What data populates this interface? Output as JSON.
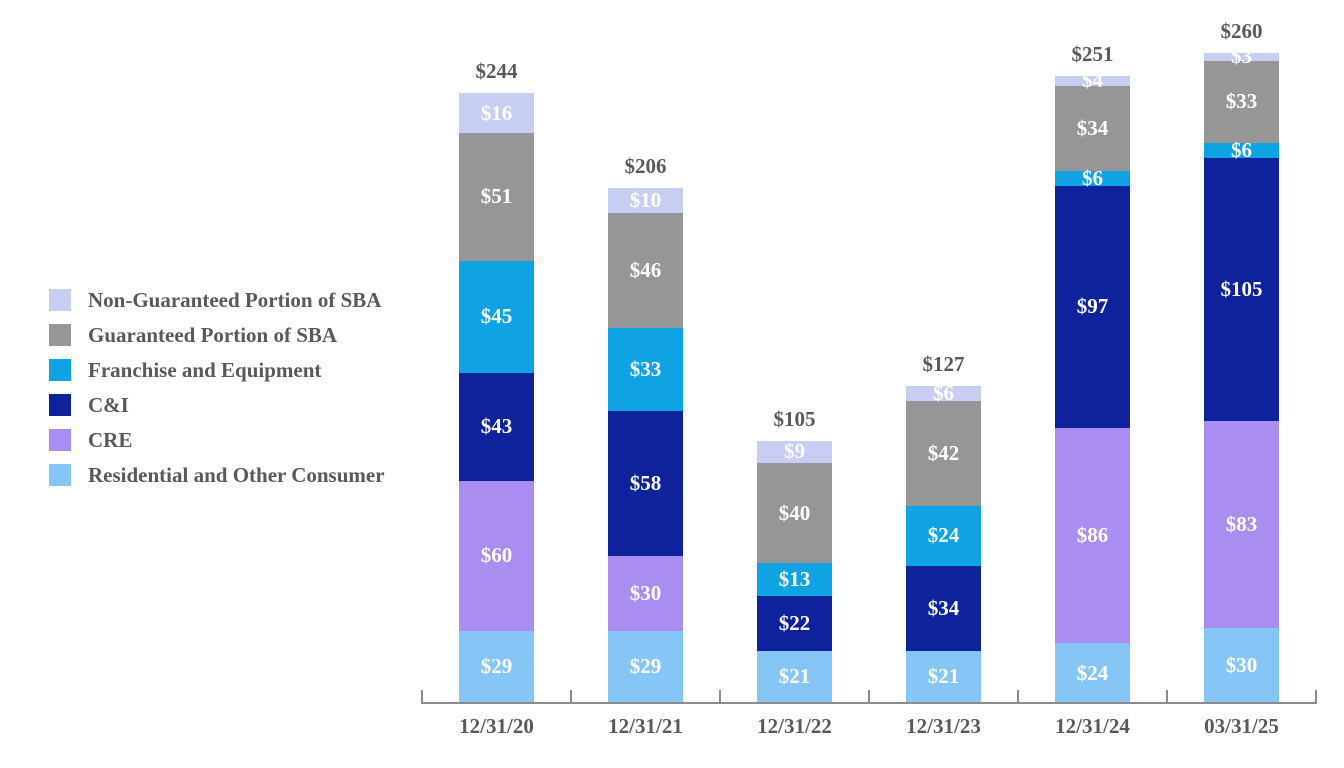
{
  "chart_data": {
    "type": "bar",
    "stacked": true,
    "value_prefix": "$",
    "categories": [
      "12/31/20",
      "12/31/21",
      "12/31/22",
      "12/31/23",
      "12/31/24",
      "03/31/25"
    ],
    "totals": [
      244,
      206,
      105,
      127,
      251,
      260
    ],
    "total_labels": [
      "$244",
      "$206",
      "$105",
      "$127",
      "$251",
      "$260"
    ],
    "series": [
      {
        "name": "Residential and Other Consumer",
        "color": "#85C6F7",
        "values": [
          29,
          29,
          21,
          21,
          24,
          30
        ]
      },
      {
        "name": "CRE",
        "color": "#AA8DF1",
        "values": [
          60,
          30,
          0,
          0,
          86,
          83
        ]
      },
      {
        "name": "C&I",
        "color": "#0D229B",
        "values": [
          43,
          58,
          22,
          34,
          97,
          105
        ]
      },
      {
        "name": "Franchise and Equipment",
        "color": "#10A3E4",
        "values": [
          45,
          33,
          13,
          24,
          6,
          6
        ]
      },
      {
        "name": "Guaranteed Portion of SBA",
        "color": "#969696",
        "values": [
          51,
          46,
          40,
          42,
          34,
          33
        ]
      },
      {
        "name": "Non-Guaranteed Portion of SBA",
        "color": "#C7CDF3",
        "values": [
          16,
          10,
          9,
          6,
          4,
          3
        ]
      }
    ],
    "legend": [
      {
        "label": "Non-Guaranteed Portion of SBA",
        "color": "#C7CDF3"
      },
      {
        "label": "Guaranteed Portion of SBA",
        "color": "#969696"
      },
      {
        "label": "Franchise and Equipment",
        "color": "#10A3E4"
      },
      {
        "label": "C&I",
        "color": "#0D229B"
      },
      {
        "label": "CRE",
        "color": "#AA8DF1"
      },
      {
        "label": "Residential and Other Consumer",
        "color": "#85C6F7"
      }
    ],
    "legend_position": "left",
    "grid": false,
    "value_label_color": "#FFFFFF",
    "axis_text_color": "#595959",
    "axis_line_color": "#8C8C8C",
    "ylim": [
      0,
      260
    ]
  }
}
